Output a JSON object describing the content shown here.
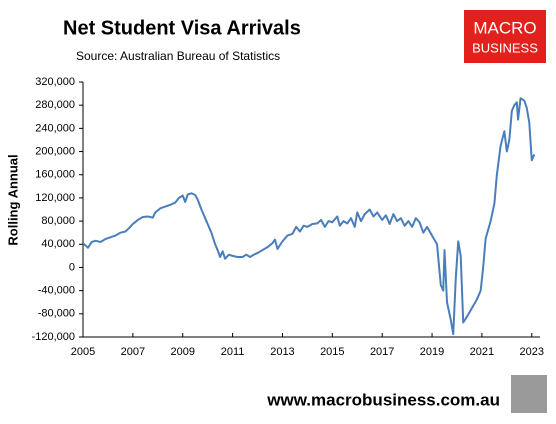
{
  "chart_data": {
    "type": "line",
    "title": "Net Student Visa Arrivals",
    "subtitle": "Source: Australian Bureau of Statistics",
    "y_label": "Rolling Annual",
    "logo": [
      "MACRO",
      "BUSINESS"
    ],
    "footer": "www.macrobusiness.com.au",
    "color": "#4a7ebb",
    "xlim": [
      2005,
      2023.33
    ],
    "xticks": [
      2005,
      2007,
      2009,
      2011,
      2013,
      2015,
      2017,
      2019,
      2021,
      2023
    ],
    "ylim": [
      -120000,
      320000
    ],
    "yticks": [
      {
        "value": 320000,
        "label": "320,000"
      },
      {
        "value": 280000,
        "label": "280,000"
      },
      {
        "value": 240000,
        "label": "240,000"
      },
      {
        "value": 200000,
        "label": "200,000"
      },
      {
        "value": 160000,
        "label": "160,000"
      },
      {
        "value": 120000,
        "label": "120,000"
      },
      {
        "value": 80000,
        "label": "80,000"
      },
      {
        "value": 40000,
        "label": "40,000"
      },
      0,
      {
        "value": -40000,
        "label": "-40,000"
      },
      {
        "value": -80000,
        "label": "-80,000"
      },
      {
        "value": -120000,
        "label": "-120,000"
      }
    ],
    "x": [
      2005.0,
      2005.1,
      2005.2,
      2005.35,
      2005.5,
      2005.7,
      2005.9,
      2006.1,
      2006.3,
      2006.5,
      2006.7,
      2006.85,
      2007.0,
      2007.2,
      2007.4,
      2007.6,
      2007.8,
      2007.9,
      2008.1,
      2008.3,
      2008.5,
      2008.7,
      2008.85,
      2009.0,
      2009.1,
      2009.2,
      2009.35,
      2009.5,
      2009.6,
      2009.75,
      2009.9,
      2010.0,
      2010.15,
      2010.3,
      2010.4,
      2010.5,
      2010.6,
      2010.7,
      2010.85,
      2011.0,
      2011.2,
      2011.4,
      2011.55,
      2011.7,
      2011.85,
      2012.0,
      2012.2,
      2012.4,
      2012.6,
      2012.7,
      2012.8,
      2013.0,
      2013.2,
      2013.4,
      2013.55,
      2013.7,
      2013.85,
      2014.0,
      2014.2,
      2014.4,
      2014.55,
      2014.7,
      2014.85,
      2015.0,
      2015.2,
      2015.3,
      2015.45,
      2015.6,
      2015.75,
      2015.9,
      2016.0,
      2016.15,
      2016.3,
      2016.5,
      2016.65,
      2016.8,
      2017.0,
      2017.15,
      2017.3,
      2017.45,
      2017.6,
      2017.75,
      2017.9,
      2018.05,
      2018.2,
      2018.35,
      2018.5,
      2018.65,
      2018.8,
      2019.0,
      2019.2,
      2019.35,
      2019.45,
      2019.5,
      2019.6,
      2019.75,
      2019.85,
      2019.95,
      2020.05,
      2020.15,
      2020.25,
      2020.4,
      2020.6,
      2020.8,
      2020.95,
      2021.05,
      2021.15,
      2021.35,
      2021.5,
      2021.6,
      2021.75,
      2021.9,
      2022.0,
      2022.1,
      2022.2,
      2022.3,
      2022.4,
      2022.45,
      2022.55,
      2022.7,
      2022.8,
      2022.9,
      2023.0,
      2023.1
    ],
    "values": [
      42000,
      38000,
      34000,
      44000,
      46000,
      44000,
      49000,
      52000,
      55000,
      60000,
      62000,
      68000,
      75000,
      82000,
      87000,
      88000,
      86000,
      95000,
      102000,
      105000,
      108000,
      112000,
      120000,
      124000,
      113000,
      126000,
      128000,
      125000,
      117000,
      100000,
      85000,
      75000,
      60000,
      40000,
      30000,
      18000,
      28000,
      15000,
      22000,
      20000,
      18000,
      18000,
      22000,
      18000,
      22000,
      25000,
      30000,
      35000,
      42000,
      48000,
      32000,
      45000,
      55000,
      58000,
      70000,
      62000,
      72000,
      70000,
      75000,
      76000,
      82000,
      70000,
      80000,
      78000,
      88000,
      72000,
      80000,
      76000,
      85000,
      70000,
      95000,
      80000,
      92000,
      100000,
      88000,
      95000,
      82000,
      90000,
      75000,
      92000,
      80000,
      85000,
      72000,
      80000,
      70000,
      85000,
      78000,
      60000,
      70000,
      55000,
      40000,
      -30000,
      -40000,
      30000,
      -60000,
      -90000,
      -115000,
      -20000,
      45000,
      20000,
      -95000,
      -85000,
      -70000,
      -55000,
      -40000,
      0,
      50000,
      80000,
      110000,
      160000,
      210000,
      235000,
      200000,
      220000,
      270000,
      280000,
      285000,
      255000,
      292000,
      288000,
      275000,
      250000,
      185000,
      195000
    ]
  }
}
